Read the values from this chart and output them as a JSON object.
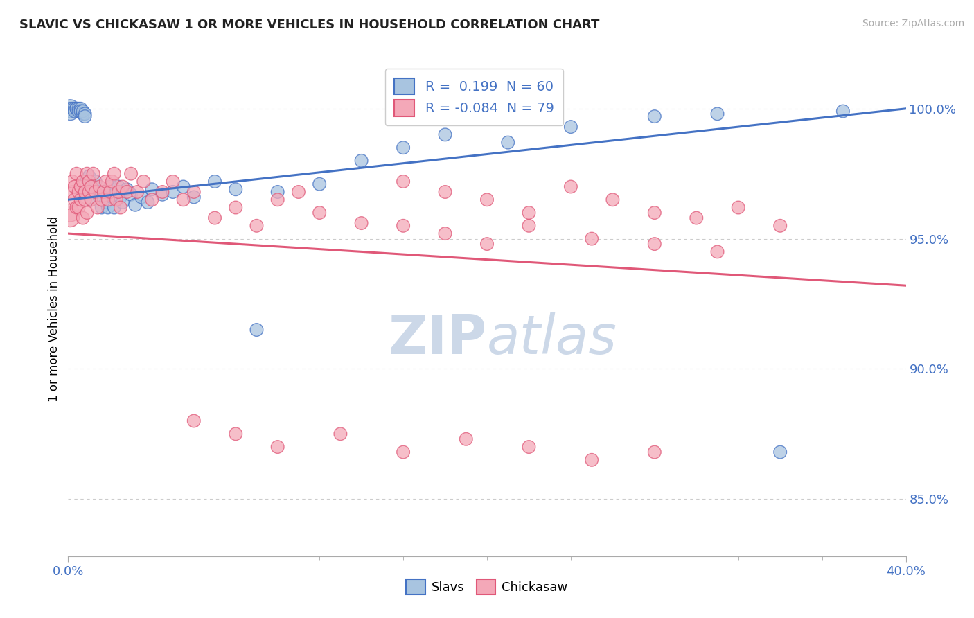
{
  "title": "SLAVIC VS CHICKASAW 1 OR MORE VEHICLES IN HOUSEHOLD CORRELATION CHART",
  "source_text": "Source: ZipAtlas.com",
  "ylabel": "1 or more Vehicles in Household",
  "xlim": [
    0.0,
    0.4
  ],
  "ylim": [
    0.828,
    1.018
  ],
  "y_tick_vals_right": [
    0.85,
    0.9,
    0.95,
    1.0
  ],
  "y_tick_labels_right": [
    "85.0%",
    "90.0%",
    "95.0%",
    "100.0%"
  ],
  "slavs_R": 0.199,
  "slavs_N": 60,
  "chickasaw_R": -0.084,
  "chickasaw_N": 79,
  "slavs_color": "#a8c4e0",
  "chickasaw_color": "#f4a8b8",
  "trend_slavs_color": "#4472c4",
  "trend_chickasaw_color": "#e05878",
  "background_color": "#ffffff",
  "grid_color": "#cccccc",
  "watermark_color": "#ccd8e8",
  "slavs_scatter_x": [
    0.001,
    0.001,
    0.002,
    0.003,
    0.003,
    0.004,
    0.004,
    0.005,
    0.005,
    0.006,
    0.006,
    0.007,
    0.007,
    0.008,
    0.008,
    0.009,
    0.009,
    0.01,
    0.01,
    0.011,
    0.011,
    0.012,
    0.013,
    0.014,
    0.015,
    0.016,
    0.017,
    0.018,
    0.019,
    0.02,
    0.021,
    0.022,
    0.023,
    0.024,
    0.025,
    0.026,
    0.028,
    0.03,
    0.032,
    0.035,
    0.038,
    0.04,
    0.045,
    0.05,
    0.055,
    0.06,
    0.07,
    0.08,
    0.09,
    0.1,
    0.12,
    0.14,
    0.16,
    0.18,
    0.21,
    0.24,
    0.28,
    0.31,
    0.34,
    0.37
  ],
  "slavs_scatter_y": [
    1.0,
    0.999,
    1.0,
    1.0,
    0.999,
    1.0,
    1.0,
    1.0,
    0.999,
    1.0,
    0.999,
    0.998,
    0.999,
    0.998,
    0.997,
    0.973,
    0.968,
    0.974,
    0.972,
    0.968,
    0.965,
    0.97,
    0.972,
    0.968,
    0.966,
    0.962,
    0.968,
    0.964,
    0.962,
    0.97,
    0.966,
    0.962,
    0.968,
    0.97,
    0.966,
    0.964,
    0.969,
    0.967,
    0.963,
    0.966,
    0.964,
    0.969,
    0.967,
    0.968,
    0.97,
    0.966,
    0.972,
    0.969,
    0.915,
    0.968,
    0.971,
    0.98,
    0.985,
    0.99,
    0.987,
    0.993,
    0.997,
    0.998,
    0.868,
    0.999
  ],
  "chickasaw_scatter_x": [
    0.001,
    0.001,
    0.002,
    0.002,
    0.003,
    0.003,
    0.004,
    0.004,
    0.005,
    0.005,
    0.006,
    0.006,
    0.007,
    0.007,
    0.008,
    0.008,
    0.009,
    0.009,
    0.01,
    0.01,
    0.011,
    0.011,
    0.012,
    0.013,
    0.014,
    0.015,
    0.016,
    0.017,
    0.018,
    0.019,
    0.02,
    0.021,
    0.022,
    0.023,
    0.024,
    0.025,
    0.026,
    0.028,
    0.03,
    0.033,
    0.036,
    0.04,
    0.045,
    0.05,
    0.055,
    0.06,
    0.07,
    0.08,
    0.09,
    0.1,
    0.11,
    0.12,
    0.14,
    0.16,
    0.18,
    0.2,
    0.22,
    0.25,
    0.28,
    0.31,
    0.16,
    0.18,
    0.2,
    0.22,
    0.24,
    0.26,
    0.28,
    0.3,
    0.32,
    0.34,
    0.06,
    0.08,
    0.1,
    0.13,
    0.16,
    0.19,
    0.22,
    0.25,
    0.28
  ],
  "chickasaw_scatter_y": [
    0.96,
    0.958,
    0.968,
    0.972,
    0.965,
    0.97,
    0.962,
    0.975,
    0.968,
    0.962,
    0.965,
    0.97,
    0.958,
    0.972,
    0.965,
    0.968,
    0.975,
    0.96,
    0.972,
    0.968,
    0.965,
    0.97,
    0.975,
    0.968,
    0.962,
    0.97,
    0.965,
    0.968,
    0.972,
    0.965,
    0.968,
    0.972,
    0.975,
    0.965,
    0.968,
    0.962,
    0.97,
    0.968,
    0.975,
    0.968,
    0.972,
    0.965,
    0.968,
    0.972,
    0.965,
    0.968,
    0.958,
    0.962,
    0.955,
    0.965,
    0.968,
    0.96,
    0.956,
    0.955,
    0.952,
    0.948,
    0.955,
    0.95,
    0.948,
    0.945,
    0.972,
    0.968,
    0.965,
    0.96,
    0.97,
    0.965,
    0.96,
    0.958,
    0.962,
    0.955,
    0.88,
    0.875,
    0.87,
    0.875,
    0.868,
    0.873,
    0.87,
    0.865,
    0.868
  ],
  "trend_slavs_x0": 0.0,
  "trend_slavs_y0": 0.965,
  "trend_slavs_x1": 0.4,
  "trend_slavs_y1": 1.0,
  "trend_chick_x0": 0.0,
  "trend_chick_y0": 0.952,
  "trend_chick_x1": 0.4,
  "trend_chick_y1": 0.932,
  "legend_box_color": "#ffffff",
  "legend_border_color": "#cccccc"
}
